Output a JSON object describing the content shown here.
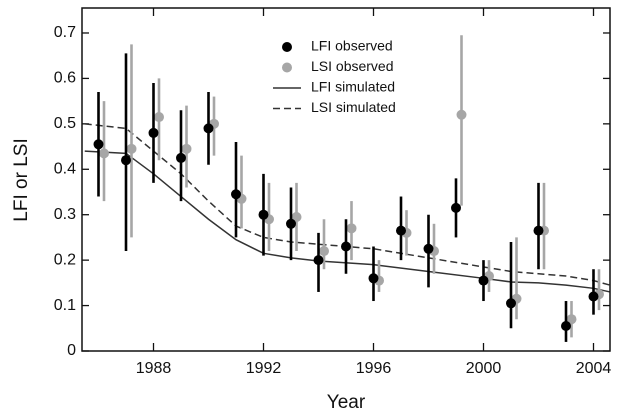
{
  "chart_data": {
    "type": "scatter",
    "x_label": "Year",
    "y_label": "LFI or LSI",
    "xlim": [
      1985.4,
      2004.6
    ],
    "ylim": [
      0,
      0.755
    ],
    "xticks": [
      1988,
      1992,
      1996,
      2000,
      2004
    ],
    "yticks": [
      0,
      0.1,
      0.2,
      0.3,
      0.4,
      0.5,
      0.6,
      0.7
    ],
    "legend": "top",
    "series": [
      {
        "name": "LFI observed",
        "color": "#000000",
        "marker": "circle",
        "x": [
          1986,
          1987,
          1988,
          1989,
          1990,
          1991,
          1992,
          1993,
          1994,
          1995,
          1996,
          1997,
          1998,
          1999,
          2000,
          2001,
          2002,
          2003,
          2004
        ],
        "values": [
          0.455,
          0.42,
          0.48,
          0.425,
          0.49,
          0.345,
          0.3,
          0.28,
          0.2,
          0.23,
          0.16,
          0.265,
          0.225,
          0.315,
          0.155,
          0.105,
          0.265,
          0.055,
          0.12
        ],
        "lower": [
          0.34,
          0.22,
          0.37,
          0.33,
          0.41,
          0.25,
          0.21,
          0.2,
          0.13,
          0.17,
          0.11,
          0.2,
          0.14,
          0.25,
          0.11,
          0.05,
          0.18,
          0.02,
          0.08
        ],
        "upper": [
          0.57,
          0.655,
          0.59,
          0.53,
          0.57,
          0.46,
          0.39,
          0.36,
          0.26,
          0.29,
          0.23,
          0.34,
          0.3,
          0.38,
          0.2,
          0.24,
          0.37,
          0.11,
          0.18
        ]
      },
      {
        "name": "LSI observed",
        "color": "#a6a6a6",
        "marker": "circle",
        "x": [
          1986.2,
          1987.2,
          1988.2,
          1989.2,
          1990.2,
          1991.2,
          1992.2,
          1993.2,
          1994.2,
          1995.2,
          1996.2,
          1997.2,
          1998.2,
          1999.2,
          2000.2,
          2001.2,
          2002.2,
          2003.2,
          2004.2
        ],
        "values": [
          0.435,
          0.445,
          0.515,
          0.445,
          0.5,
          0.335,
          0.29,
          0.295,
          0.22,
          0.27,
          0.155,
          0.26,
          0.22,
          0.52,
          0.165,
          0.115,
          0.265,
          0.07,
          0.125
        ],
        "lower": [
          0.33,
          0.25,
          0.42,
          0.36,
          0.43,
          0.27,
          0.22,
          0.22,
          0.18,
          0.2,
          0.13,
          0.21,
          0.17,
          0.32,
          0.13,
          0.07,
          0.18,
          0.03,
          0.09
        ],
        "upper": [
          0.55,
          0.675,
          0.6,
          0.54,
          0.56,
          0.43,
          0.37,
          0.37,
          0.29,
          0.33,
          0.2,
          0.31,
          0.28,
          0.695,
          0.2,
          0.25,
          0.37,
          0.11,
          0.18
        ]
      },
      {
        "name": "LFI simulated",
        "color": "#333333",
        "linestyle": "solid",
        "x": [
          1985.5,
          1987,
          1988,
          1989,
          1990,
          1991,
          1992,
          1993,
          1994,
          1996,
          1998,
          2000,
          2001,
          2002,
          2003,
          2004,
          2004.6
        ],
        "values": [
          0.44,
          0.435,
          0.39,
          0.34,
          0.29,
          0.245,
          0.215,
          0.205,
          0.198,
          0.19,
          0.175,
          0.16,
          0.152,
          0.15,
          0.145,
          0.138,
          0.13
        ]
      },
      {
        "name": "LSI simulated",
        "color": "#333333",
        "linestyle": "dashed",
        "x": [
          1985.5,
          1987,
          1988,
          1989,
          1990,
          1991,
          1992,
          1993,
          1994,
          1996,
          1998,
          2000,
          2001,
          2002,
          2003,
          2004,
          2004.6
        ],
        "values": [
          0.5,
          0.49,
          0.44,
          0.39,
          0.33,
          0.275,
          0.25,
          0.24,
          0.235,
          0.225,
          0.205,
          0.185,
          0.175,
          0.17,
          0.165,
          0.155,
          0.145
        ]
      }
    ]
  }
}
